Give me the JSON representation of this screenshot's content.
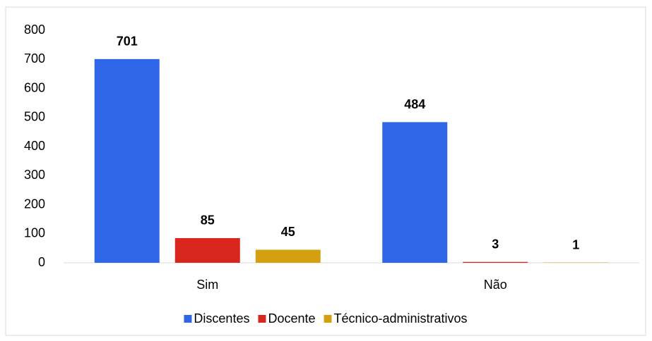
{
  "chart_data": {
    "type": "bar",
    "categories": [
      "Sim",
      "Não"
    ],
    "series": [
      {
        "name": "Discentes",
        "color": "#2f66e8",
        "values": [
          701,
          484
        ]
      },
      {
        "name": "Docente",
        "color": "#d8261c",
        "values": [
          85,
          3
        ]
      },
      {
        "name": "Técnico-administrativos",
        "color": "#d4a010",
        "values": [
          45,
          1
        ]
      }
    ],
    "ylim": [
      0,
      800
    ],
    "yticks": [
      0,
      100,
      200,
      300,
      400,
      500,
      600,
      700,
      800
    ],
    "grid": false,
    "legend": "bottom"
  }
}
